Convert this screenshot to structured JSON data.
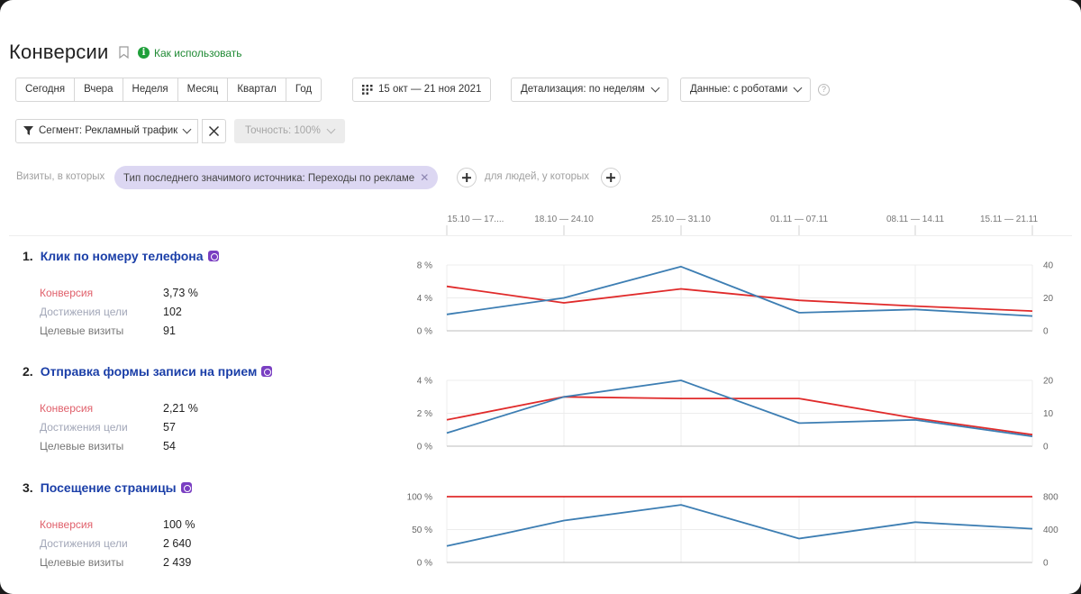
{
  "page": {
    "title": "Конверсии",
    "help_link": "Как использовать",
    "colors": {
      "accent_green": "#1f9f3a",
      "link_blue": "#1b3fa8",
      "series_conversion": "#e02b2b",
      "series_visits": "#3d7eb3",
      "chip_bg": "#dcd7f2"
    }
  },
  "toolbar": {
    "periods": [
      "Сегодня",
      "Вчера",
      "Неделя",
      "Месяц",
      "Квартал",
      "Год"
    ],
    "date_range": "15 окт — 21 ноя 2021",
    "detail": "Детализация: по неделям",
    "data_mode": "Данные: с роботами",
    "icons": {
      "calendar": "calendar-icon",
      "help": "question-icon"
    }
  },
  "segment": {
    "label": "Сегмент: Рекламный трафик",
    "accuracy": "Точность: 100%"
  },
  "filters": {
    "visits_prefix": "Визиты, в которых",
    "chip": "Тип последнего значимого источника: Переходы по рекламе",
    "people_prefix": "для людей, у которых"
  },
  "weeks": [
    "15.10 — 17....",
    "18.10 — 24.10",
    "25.10 — 31.10",
    "01.11 — 07.11",
    "08.11 — 14.11",
    "15.11 — 21.11"
  ],
  "goals": [
    {
      "num": "1.",
      "name": "Клик по номеру телефона",
      "conversion_label": "Конверсия",
      "conversion_value": "3,73 %",
      "achievements_label": "Достижения цели",
      "achievements_value": "102",
      "visits_label": "Целевые визиты",
      "visits_value": "91"
    },
    {
      "num": "2.",
      "name": "Отправка формы записи на прием",
      "conversion_label": "Конверсия",
      "conversion_value": "2,21 %",
      "achievements_label": "Достижения цели",
      "achievements_value": "57",
      "visits_label": "Целевые визиты",
      "visits_value": "54"
    },
    {
      "num": "3.",
      "name": "Посещение страницы",
      "conversion_label": "Конверсия",
      "conversion_value": "100 %",
      "achievements_label": "Достижения цели",
      "achievements_value": "2 640",
      "visits_label": "Целевые визиты",
      "visits_value": "2 439"
    }
  ],
  "chart_data": [
    {
      "type": "line",
      "categories": [
        "15.10 — 17....",
        "18.10 — 24.10",
        "25.10 — 31.10",
        "01.11 — 07.11",
        "08.11 — 14.11",
        "15.11 — 21.11"
      ],
      "left_ticks": [
        "0 %",
        "4 %",
        "8 %"
      ],
      "left_lim": [
        0,
        8
      ],
      "right_ticks": [
        "0",
        "20",
        "40"
      ],
      "right_lim": [
        0,
        40
      ],
      "series": [
        {
          "axis": "left",
          "color": "#e02b2b",
          "values": [
            5.4,
            3.4,
            5.1,
            3.7,
            3.0,
            2.4
          ]
        },
        {
          "axis": "right",
          "color": "#3d7eb3",
          "values": [
            10,
            20,
            39,
            11,
            13,
            9
          ]
        }
      ],
      "x_at": [
        0,
        0.262,
        0.522,
        0.787,
        1.045,
        1.27
      ]
    },
    {
      "type": "line",
      "categories": [
        "15.10 — 17....",
        "18.10 — 24.10",
        "25.10 — 31.10",
        "01.11 — 07.11",
        "08.11 — 14.11",
        "15.11 — 21.11"
      ],
      "left_ticks": [
        "0 %",
        "2 %",
        "4 %"
      ],
      "left_lim": [
        0,
        4
      ],
      "right_ticks": [
        "0",
        "10",
        "20"
      ],
      "right_lim": [
        0,
        20
      ],
      "series": [
        {
          "axis": "left",
          "color": "#e02b2b",
          "values": [
            1.6,
            3.0,
            2.9,
            2.9,
            1.7,
            0.7
          ]
        },
        {
          "axis": "right",
          "color": "#3d7eb3",
          "values": [
            4,
            15,
            20,
            7,
            8,
            3
          ]
        }
      ],
      "x_at": [
        0,
        0.262,
        0.522,
        0.787,
        1.045,
        1.27
      ]
    },
    {
      "type": "line",
      "categories": [
        "15.10 — 17....",
        "18.10 — 24.10",
        "25.10 — 31.10",
        "01.11 — 07.11",
        "08.11 — 14.11",
        "15.11 — 21.11"
      ],
      "left_ticks": [
        "0 %",
        "50 %",
        "100 %"
      ],
      "left_lim": [
        0,
        100
      ],
      "right_ticks": [
        "0",
        "400",
        "800"
      ],
      "right_lim": [
        0,
        800
      ],
      "series": [
        {
          "axis": "left",
          "color": "#e02b2b",
          "values": [
            100,
            100,
            100,
            100,
            100,
            100
          ]
        },
        {
          "axis": "right",
          "color": "#3d7eb3",
          "values": [
            200,
            510,
            700,
            290,
            490,
            410
          ]
        }
      ],
      "x_at": [
        0,
        0.262,
        0.522,
        0.787,
        1.045,
        1.27
      ]
    }
  ]
}
